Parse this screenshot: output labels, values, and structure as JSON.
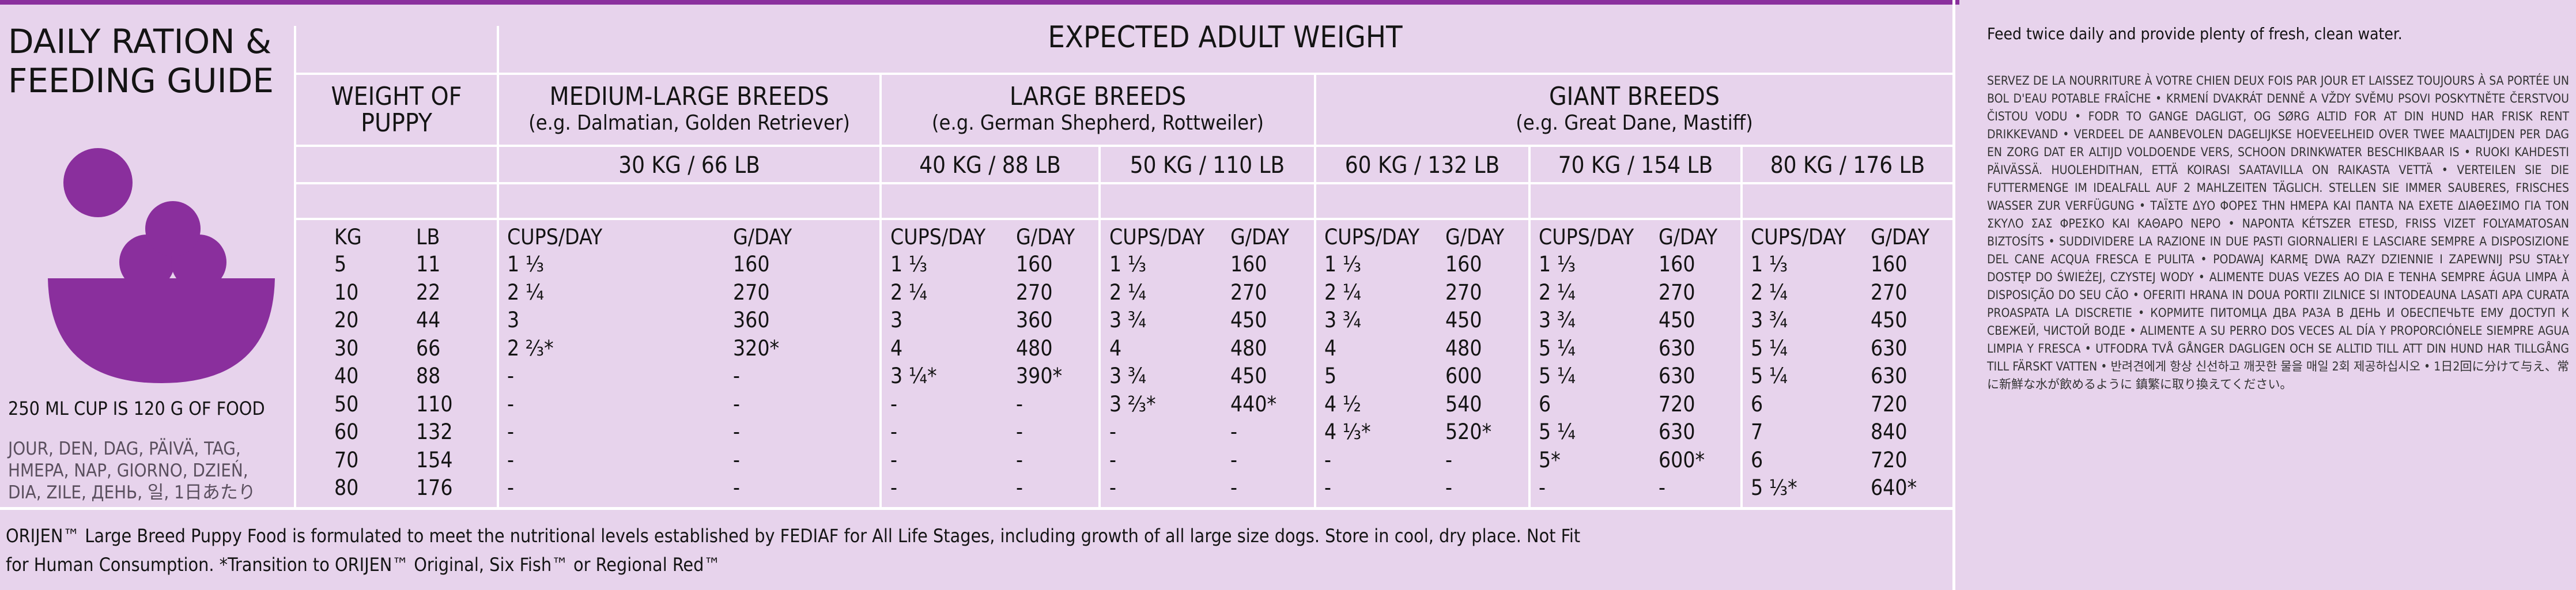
{
  "guide_title": [
    "DAILY RATION &",
    "FEEDING GUIDE"
  ],
  "cup_note": "250 ML CUP IS 120 G OF FOOD",
  "per_day_translations": [
    "JOUR, DEN, DAG, PÄIVÄ, TAG,",
    "HMEPA, NAP, GIORNO, DZIEŃ,",
    "DIA, ZILE, ДЕНЬ, 일, 1日あたり"
  ],
  "expected_weight_title": "EXPECTED ADULT WEIGHT",
  "puppy_weight_header": [
    "WEIGHT OF",
    "PUPPY"
  ],
  "unit_headers": [
    "KG",
    "LB"
  ],
  "breed_groups": [
    {
      "name": "MEDIUM-LARGE BREEDS",
      "examples": "(e.g. Dalmatian, Golden Retriever)"
    },
    {
      "name": "LARGE BREEDS",
      "examples": "(e.g. German Shepherd, Rottweiler)"
    },
    {
      "name": "GIANT BREEDS",
      "examples": "(e.g. Great Dane, Mastiff)"
    }
  ],
  "adult_weights": [
    "30 KG / 66 LB",
    "40 KG / 88 LB",
    "50 KG / 110 LB",
    "60 KG / 132 LB",
    "70 KG / 154 LB",
    "80 KG / 176 LB"
  ],
  "cups_label": "CUPS/DAY",
  "grams_label": "G/DAY",
  "rows": [
    {
      "kg": "5",
      "lb": "11",
      "values": [
        [
          "1 ⅓",
          "160"
        ],
        [
          "1 ⅓",
          "160"
        ],
        [
          "1 ⅓",
          "160"
        ],
        [
          "1 ⅓",
          "160"
        ],
        [
          "1 ⅓",
          "160"
        ],
        [
          "1 ⅓",
          "160"
        ]
      ]
    },
    {
      "kg": "10",
      "lb": "22",
      "values": [
        [
          "2 ¼",
          "270"
        ],
        [
          "2 ¼",
          "270"
        ],
        [
          "2 ¼",
          "270"
        ],
        [
          "2 ¼",
          "270"
        ],
        [
          "2 ¼",
          "270"
        ],
        [
          "2 ¼",
          "270"
        ]
      ]
    },
    {
      "kg": "20",
      "lb": "44",
      "values": [
        [
          "3",
          "360"
        ],
        [
          "3",
          "360"
        ],
        [
          "3 ¾",
          "450"
        ],
        [
          "3 ¾",
          "450"
        ],
        [
          "3 ¾",
          "450"
        ],
        [
          "3 ¾",
          "450"
        ]
      ]
    },
    {
      "kg": "30",
      "lb": "66",
      "values": [
        [
          "2 ⅔*",
          "320*"
        ],
        [
          "4",
          "480"
        ],
        [
          "4",
          "480"
        ],
        [
          "4",
          "480"
        ],
        [
          "5 ¼",
          "630"
        ],
        [
          "5 ¼",
          "630"
        ]
      ]
    },
    {
      "kg": "40",
      "lb": "88",
      "values": [
        [
          "-",
          "-"
        ],
        [
          "3 ¼*",
          "390*"
        ],
        [
          "3 ¾",
          "450"
        ],
        [
          "5",
          "600"
        ],
        [
          "5 ¼",
          "630"
        ],
        [
          "5 ¼",
          "630"
        ]
      ]
    },
    {
      "kg": "50",
      "lb": "110",
      "values": [
        [
          "-",
          "-"
        ],
        [
          "-",
          "-"
        ],
        [
          "3 ⅔*",
          "440*"
        ],
        [
          "4 ½",
          "540"
        ],
        [
          "6",
          "720"
        ],
        [
          "6",
          "720"
        ]
      ]
    },
    {
      "kg": "60",
      "lb": "132",
      "values": [
        [
          "-",
          "-"
        ],
        [
          "-",
          "-"
        ],
        [
          "-",
          "-"
        ],
        [
          "4 ⅓*",
          "520*"
        ],
        [
          "5 ¼",
          "630"
        ],
        [
          "7",
          "840"
        ]
      ]
    },
    {
      "kg": "70",
      "lb": "154",
      "values": [
        [
          "-",
          "-"
        ],
        [
          "-",
          "-"
        ],
        [
          "-",
          "-"
        ],
        [
          "-",
          "-"
        ],
        [
          "5*",
          "600*"
        ],
        [
          "6",
          "720"
        ]
      ]
    },
    {
      "kg": "80",
      "lb": "176",
      "values": [
        [
          "-",
          "-"
        ],
        [
          "-",
          "-"
        ],
        [
          "-",
          "-"
        ],
        [
          "-",
          "-"
        ],
        [
          "-",
          "-"
        ],
        [
          "5 ⅓*",
          "640*"
        ]
      ]
    }
  ],
  "footnote": [
    "ORIJEN™ Large Breed Puppy Food is formulated to meet the nutritional levels established by FEDIAF for All Life Stages, including growth of all large size dogs. Store in cool, dry place. Not Fit",
    "for Human Consumption. *Transition to ORIJEN™ Original, Six Fish™ or Regional Red™"
  ],
  "feed_instruction": "Feed twice daily and provide plenty of fresh, clean water.",
  "translations": "SERVEZ DE LA NOURRITURE À VOTRE CHIEN DEUX FOIS PAR JOUR ET LAISSEZ TOUJOURS À SA PORTÉE UN BOL D'EAU POTABLE FRAÎCHE • KRMENÍ DVAKRÁT DENNĚ A VŽDY SVĚMU PSOVI POSKYTNĚTE ČERSTVOU ČISTOU VODU • FODR TO GANGE DAGLIGT, OG SØRG ALTID FOR AT DIN HUND HAR FRISK RENT DRIKKEVAND • VERDEEL DE AANBEVOLEN DAGELIJKSE HOEVEELHEID OVER TWEE MAALTIJDEN PER DAG EN ZORG DAT ER ALTIJD VOLDOENDE VERS, SCHOON DRINKWATER BESCHIKBAAR IS • RUOKI KAHDESTI PÄIVÄSSÄ. HUOLEHDITHAN, ETTÄ KOIRASI SAATAVILLA ON RAIKASTA VETTÄ • VERTEILEN SIE DIE FUTTERMENGE IM IDEALFALL AUF 2 MAHLZEITEN TÄGLICH. STELLEN SIE IMMER SAUBERES, FRISCHES WASSER ZUR VERFÜGUNG • ΤΑΪΣΤΕ ΔΥΟ ΦΟΡΕΣ ΤΗΝ ΗΜΕΡΑ ΚΑΙ ΠΑΝΤΑ ΝΑ ΕΧΕΤΕ ΔΙΑΘΕΣΙΜΟ ΓΙΑ ΤΟΝ ΣΚΥΛΟ ΣΑΣ ΦΡΕΣΚΟ ΚΑΙ ΚΑΘΑΡΟ ΝΕΡΟ • NAPONTA KÉTSZER ETESD, FRISS VIZET FOLYAMATOSAN BIZTOSÍTS • SUDDIVIDERE LA RAZIONE IN DUE PASTI GIORNALIERI E LASCIARE SEMPRE A DISPOSIZIONE DEL CANE ACQUA FRESCA E PULITA • PODAWAJ KARMĘ DWA RAZY DZIENNIE I ZAPEWNIJ PSU STAŁY DOSTĘP DO ŚWIEŻEJ, CZYSTEJ WODY • ALIMENTE DUAS VEZES AO DIA E TENHA SEMPRE ÁGUA LIMPA À DISPOSIÇÃO DO SEU CÃO • OFERITI HRANA IN DOUA PORTII ZILNICE SI INTODEAUNA LASATI APA CURATA PROASPATA LA DISCRETIE • КОРМИТЕ ПИТОМЦА ДВА РАЗА В ДЕНЬ И ОБЕСПЕЧЬТЕ ЕМУ ДОСТУП К СВЕЖЕЙ, ЧИСТОЙ ВОДЕ • ALIMENTE A SU PERRO DOS VECES AL DÍA Y PROPORCIÓNELE SIEMPRE AGUA LIMPIA Y FRESCA • UTFODRA TVÅ GÅNGER DAGLIGEN OCH SE ALLTID TILL ATT DIN HUND HAR TILLGÅNG TILL FÄRSKT VATTEN • 반려견에게 항상 신선하고 깨끗한 물을 매일 2회 제공하십시오 • 1日2回に分けて与え、常に新鮮な水が飲めるように 鎮繁に取り換えてください。",
  "colors": {
    "background": "#e7d3ec",
    "accent": "#8a2f9d",
    "rule": "#ffffff"
  }
}
